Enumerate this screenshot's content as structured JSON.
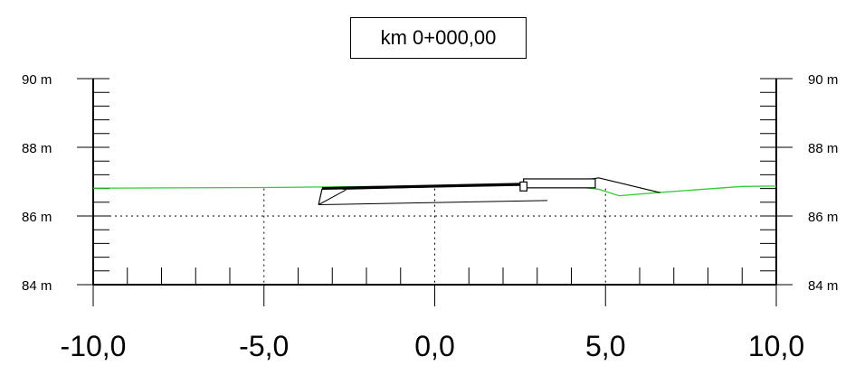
{
  "station_label": "km 0+000,00",
  "colors": {
    "terrain": "#33cc33",
    "structure": "#000000",
    "grid": "#000000",
    "background": "#ffffff"
  },
  "chart_data": {
    "type": "cross-section",
    "title": "km 0+000,00",
    "xlim": [
      -10,
      10
    ],
    "ylim": [
      84,
      90
    ],
    "x_tick_labels": [
      "-10,0",
      "-5,0",
      "0,0",
      "5,0",
      "10,0"
    ],
    "x_ticks": [
      -10,
      -5,
      0,
      5,
      10
    ],
    "y_tick_labels_left": [
      "90 m",
      "88 m",
      "86 m",
      "84 m"
    ],
    "y_tick_labels_right": [
      "90 m",
      "88 m",
      "86 m",
      "84 m"
    ],
    "y_ticks": [
      90,
      88,
      86,
      84
    ],
    "y_minor_step": 0.4,
    "x_minor_step": 1,
    "reference_line_y": 86,
    "terrain": [
      [
        -10,
        86.81
      ],
      [
        -5,
        86.83
      ],
      [
        0,
        86.88
      ],
      [
        2.5,
        86.91
      ],
      [
        3.5,
        86.92
      ],
      [
        4.8,
        86.78
      ],
      [
        5.4,
        86.59
      ],
      [
        6.5,
        86.68
      ],
      [
        9,
        86.86
      ],
      [
        10,
        86.87
      ]
    ],
    "embankment": [
      [
        -3.4,
        86.33
      ],
      [
        -3.3,
        86.78
      ],
      [
        3.5,
        86.91
      ],
      [
        4.8,
        87.11
      ],
      [
        6.6,
        86.68
      ]
    ],
    "embankment_base": [
      [
        -3.4,
        86.33
      ],
      [
        3.3,
        86.45
      ]
    ],
    "embankment_upper": [
      [
        -2.7,
        86.78
      ],
      [
        2.6,
        86.91
      ]
    ],
    "embankment_inner": [
      [
        -3.4,
        86.33
      ],
      [
        -2.6,
        86.76
      ]
    ],
    "pavement_top": [
      [
        -3.3,
        86.81
      ],
      [
        2.6,
        86.94
      ]
    ],
    "slab": {
      "x0": 2.6,
      "x1": 4.7,
      "y_top": 87.08,
      "y_bottom": 86.82
    },
    "curb": {
      "x0": 2.5,
      "x1": 2.7,
      "y_top": 86.99,
      "y_bottom": 86.73
    }
  }
}
